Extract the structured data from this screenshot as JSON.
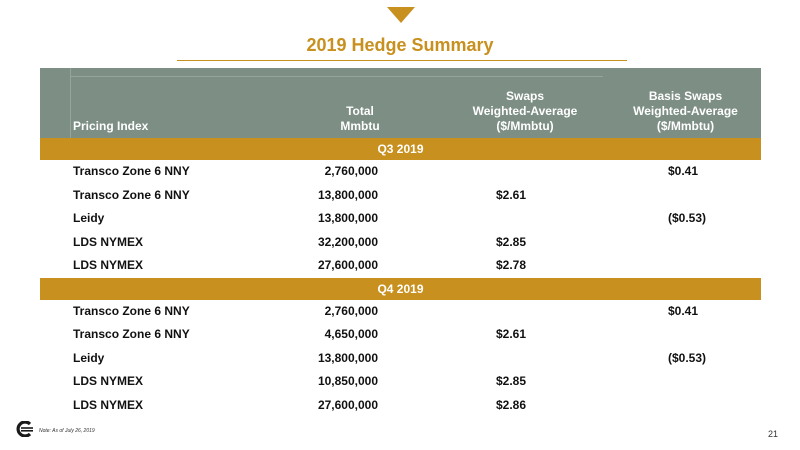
{
  "title": "2019 Hedge Summary",
  "colors": {
    "accent": "#c8901e",
    "header": "#7d8e84"
  },
  "table": {
    "headers": {
      "pricing_index": "Pricing Index",
      "total": [
        "Total",
        "Mmbtu"
      ],
      "swaps": [
        "Swaps",
        "Weighted-Average",
        "($/Mmbtu)"
      ],
      "basis_swaps": [
        "Basis Swaps",
        "Weighted-Average",
        "($/Mmbtu)"
      ]
    },
    "sections": [
      {
        "label": "Q3 2019",
        "rows": [
          {
            "index": "Transco Zone 6 NNY",
            "total": "2,760,000",
            "swaps": "",
            "basis": "$0.41"
          },
          {
            "index": "Transco Zone 6 NNY",
            "total": "13,800,000",
            "swaps": "$2.61",
            "basis": ""
          },
          {
            "index": "Leidy",
            "total": "13,800,000",
            "swaps": "",
            "basis": "($0.53)"
          },
          {
            "index": "LDS NYMEX",
            "total": "32,200,000",
            "swaps": "$2.85",
            "basis": ""
          },
          {
            "index": "LDS NYMEX",
            "total": "27,600,000",
            "swaps": "$2.78",
            "basis": ""
          }
        ]
      },
      {
        "label": "Q4 2019",
        "rows": [
          {
            "index": "Transco Zone 6 NNY",
            "total": "2,760,000",
            "swaps": "",
            "basis": "$0.41"
          },
          {
            "index": "Transco Zone 6 NNY",
            "total": "4,650,000",
            "swaps": "$2.61",
            "basis": ""
          },
          {
            "index": "Leidy",
            "total": "13,800,000",
            "swaps": "",
            "basis": "($0.53)"
          },
          {
            "index": "LDS NYMEX",
            "total": "10,850,000",
            "swaps": "$2.85",
            "basis": ""
          },
          {
            "index": "LDS NYMEX",
            "total": "27,600,000",
            "swaps": "$2.86",
            "basis": ""
          }
        ]
      }
    ]
  },
  "footer": {
    "note": "Note: As of July 26, 2019",
    "page_number": "21",
    "logo_icon": "company-logo-icon"
  }
}
